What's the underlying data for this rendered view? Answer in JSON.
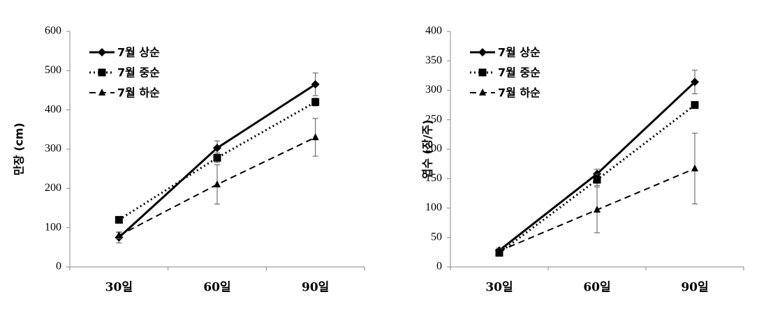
{
  "chart_data": [
    {
      "type": "line",
      "y_label": "만장 (cm)",
      "categories": [
        "30일",
        "60일",
        "90일"
      ],
      "ylim": [
        0,
        600
      ],
      "yticks": [
        0,
        100,
        200,
        300,
        400,
        500,
        600
      ],
      "legend": "upper-left",
      "series": [
        {
          "name": "7월 상순",
          "color": "#000000",
          "marker": "diamond",
          "dash": "solid",
          "values": [
            75,
            303,
            465
          ],
          "errors": [
            14,
            18,
            29
          ]
        },
        {
          "name": "7월 중순",
          "color": "#000000",
          "marker": "square",
          "dash": "dotted",
          "values": [
            120,
            278,
            420
          ],
          "errors": [
            6,
            12,
            10
          ]
        },
        {
          "name": "7월 하순",
          "color": "#000000",
          "marker": "triangle",
          "dash": "dashed",
          "values": [
            80,
            210,
            330
          ],
          "errors": [
            8,
            50,
            48
          ]
        }
      ]
    },
    {
      "type": "line",
      "y_label": "엽수 (장/주)",
      "categories": [
        "30일",
        "60일",
        "90일"
      ],
      "ylim": [
        0,
        400
      ],
      "yticks": [
        0,
        50,
        100,
        150,
        200,
        250,
        300,
        350,
        400
      ],
      "legend": "upper-left",
      "series": [
        {
          "name": "7월 상순",
          "color": "#000000",
          "marker": "diamond",
          "dash": "solid",
          "values": [
            28,
            158,
            314
          ],
          "errors": [
            4,
            8,
            20
          ]
        },
        {
          "name": "7월 중순",
          "color": "#000000",
          "marker": "square",
          "dash": "dotted",
          "values": [
            24,
            148,
            275
          ],
          "errors": [
            3,
            10,
            6
          ]
        },
        {
          "name": "7월 하순",
          "color": "#000000",
          "marker": "triangle",
          "dash": "dashed",
          "values": [
            27,
            97,
            167
          ],
          "errors": [
            4,
            39,
            60
          ]
        }
      ]
    }
  ]
}
